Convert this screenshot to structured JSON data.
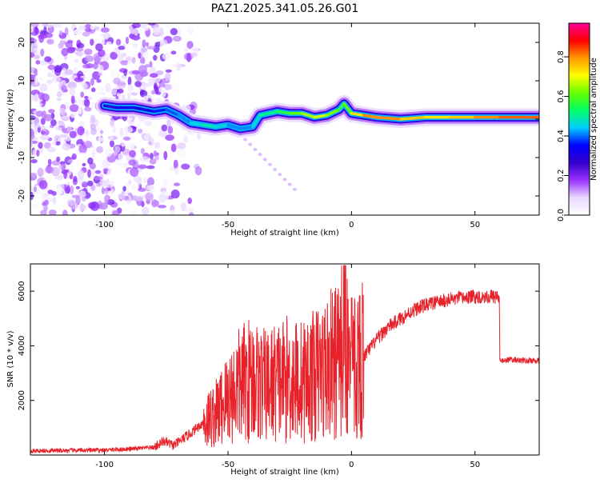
{
  "title": "PAZ1.2025.341.05.26.G01",
  "chart_data": [
    {
      "type": "heatmap",
      "xlabel": "Height of straight line (km)",
      "ylabel": "Frequency (Hz)",
      "xlim": [
        -130,
        76
      ],
      "ylim": [
        -25,
        25
      ],
      "xticks": [
        -100,
        -50,
        0,
        50
      ],
      "yticks": [
        -20,
        -10,
        0,
        10,
        20
      ],
      "colorbar": {
        "label": "Normalized spectral amplitude",
        "range": [
          0,
          0.97
        ],
        "ticks": [
          0.0,
          0.2,
          0.4,
          0.6,
          0.8
        ],
        "tick_labels": [
          "0.0",
          "0.2",
          "0.4",
          "0.6",
          "0.8"
        ],
        "colormap": [
          "#ffffff",
          "#e8d8ff",
          "#9933ff",
          "#3300cc",
          "#0000ff",
          "#00ccff",
          "#00ff66",
          "#66ff00",
          "#ffff00",
          "#ff9900",
          "#ff0000",
          "#ff0099"
        ]
      },
      "signal_track": [
        {
          "x": -100,
          "f": 3.5,
          "a": 0.25
        },
        {
          "x": -95,
          "f": 3.0,
          "a": 0.35
        },
        {
          "x": -88,
          "f": 3.0,
          "a": 0.3
        },
        {
          "x": -80,
          "f": 2.0,
          "a": 0.35
        },
        {
          "x": -75,
          "f": 2.5,
          "a": 0.4
        },
        {
          "x": -70,
          "f": 1.0,
          "a": 0.4
        },
        {
          "x": -65,
          "f": -1.0,
          "a": 0.45
        },
        {
          "x": -60,
          "f": -1.5,
          "a": 0.5
        },
        {
          "x": -55,
          "f": -2.0,
          "a": 0.5
        },
        {
          "x": -50,
          "f": -1.5,
          "a": 0.45
        },
        {
          "x": -45,
          "f": -2.5,
          "a": 0.4
        },
        {
          "x": -40,
          "f": -2.0,
          "a": 0.45
        },
        {
          "x": -37,
          "f": 1.0,
          "a": 0.5
        },
        {
          "x": -30,
          "f": 2.0,
          "a": 0.55
        },
        {
          "x": -25,
          "f": 1.5,
          "a": 0.6
        },
        {
          "x": -20,
          "f": 1.5,
          "a": 0.65
        },
        {
          "x": -15,
          "f": 0.5,
          "a": 0.7
        },
        {
          "x": -10,
          "f": 1.0,
          "a": 0.7
        },
        {
          "x": -5,
          "f": 2.5,
          "a": 0.6
        },
        {
          "x": -3,
          "f": 4.0,
          "a": 0.55
        },
        {
          "x": 0,
          "f": 1.5,
          "a": 0.7
        },
        {
          "x": 5,
          "f": 1.0,
          "a": 0.8
        },
        {
          "x": 10,
          "f": 0.5,
          "a": 0.85
        },
        {
          "x": 20,
          "f": 0.0,
          "a": 0.8
        },
        {
          "x": 30,
          "f": 0.5,
          "a": 0.75
        },
        {
          "x": 40,
          "f": 0.5,
          "a": 0.75
        },
        {
          "x": 50,
          "f": 0.5,
          "a": 0.8
        },
        {
          "x": 60,
          "f": 0.5,
          "a": 0.85
        },
        {
          "x": 70,
          "f": 0.5,
          "a": 0.85
        },
        {
          "x": 76,
          "f": 0.5,
          "a": 0.85
        }
      ]
    },
    {
      "type": "line",
      "xlabel": "Height of straight line (km)",
      "ylabel": "SNR (10 * v/v)",
      "xlim": [
        -130,
        76
      ],
      "ylim": [
        0,
        7000
      ],
      "xticks": [
        -100,
        -50,
        0,
        50
      ],
      "yticks": [
        2000,
        4000,
        6000
      ],
      "color": "#e8222a",
      "series": [
        {
          "name": "SNR",
          "x": [
            -130,
            -120,
            -110,
            -100,
            -90,
            -80,
            -76,
            -72,
            -65,
            -60,
            -55,
            -50,
            -45,
            -40,
            -35,
            -30,
            -25,
            -20,
            -15,
            -10,
            -5,
            -3,
            -1,
            0,
            5,
            10,
            15,
            20,
            25,
            30,
            35,
            40,
            45,
            50,
            55,
            59.9,
            60,
            60.2,
            65,
            70,
            76
          ],
          "values": [
            150,
            160,
            170,
            180,
            220,
            280,
            500,
            350,
            800,
            1200,
            1500,
            2100,
            2600,
            2800,
            2500,
            2700,
            2800,
            2700,
            2900,
            3200,
            3500,
            5000,
            3600,
            3200,
            3600,
            4200,
            4700,
            5000,
            5300,
            5500,
            5600,
            5700,
            5750,
            5800,
            5800,
            5800,
            3500,
            3450,
            3500,
            3450,
            3450
          ]
        }
      ]
    }
  ]
}
